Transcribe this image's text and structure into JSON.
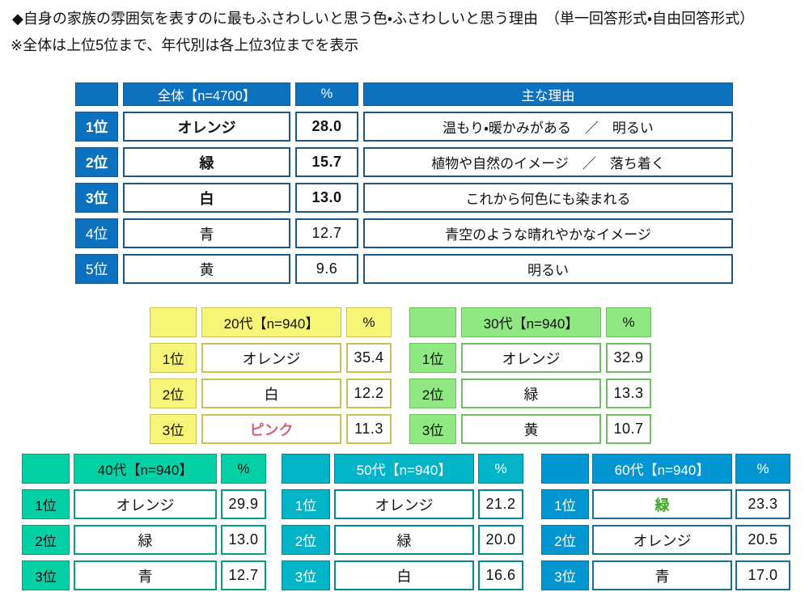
{
  "page": {
    "title": "◆自身の家族の雰囲気を表すのに最もふさわしいと思う色・ふさわしいと思う理由　（単一回答形式・自由回答形式）",
    "subtitle": "※全体は上位5位まで、年代別は各上位3位までを表示",
    "background": "#FFFFFF",
    "text_color": "#111111"
  },
  "chart_data": {
    "type": "table",
    "title": "自身の家族の雰囲気を表すのに最もふさわしいと思う色・ふさわしいと思う理由（単一回答形式・自由回答形式）",
    "note": "全体は上位5位まで、年代別は各上位3位までを表示",
    "tables": [
      {
        "name": "overall",
        "header": "全体【n=4700】",
        "percent_header": "%",
        "reason_header": "主な理由",
        "theme": {
          "fill": "#0C71BE",
          "edge": "#1D5583",
          "header_text": "#FFFFFF"
        },
        "rows": [
          {
            "rank": "1位",
            "color": "オレンジ",
            "value": "28.0",
            "reason": "温もり・暖かみがある　／　明るい",
            "bold": true
          },
          {
            "rank": "2位",
            "color": "緑",
            "value": "15.7",
            "reason": "植物や自然のイメージ　／　落ち着く",
            "bold": true
          },
          {
            "rank": "3位",
            "color": "白",
            "value": "13.0",
            "reason": "これから何色にも染まれる",
            "bold": true
          },
          {
            "rank": "4位",
            "color": "青",
            "value": "12.7",
            "reason": "青空のような晴れやかなイメージ",
            "bold": false
          },
          {
            "rank": "5位",
            "color": "黄",
            "value": "9.6",
            "reason": "明るい",
            "bold": false
          }
        ]
      },
      {
        "name": "20s",
        "header": "20代【n=940】",
        "percent_header": "%",
        "theme": {
          "fill": "#F7F578",
          "edge": "#C9C151",
          "header_text": "#111111"
        },
        "rows": [
          {
            "rank": "1位",
            "color": "オレンジ",
            "value": "35.4"
          },
          {
            "rank": "2位",
            "color": "白",
            "value": "12.2"
          },
          {
            "rank": "3位",
            "color": "ピンク",
            "value": "11.3",
            "color_style": {
              "bold": true,
              "color": "#D06287"
            }
          }
        ]
      },
      {
        "name": "30s",
        "header": "30代【n=940】",
        "percent_header": "%",
        "theme": {
          "fill": "#90E883",
          "edge": "#6FBE60",
          "header_text": "#111111"
        },
        "rows": [
          {
            "rank": "1位",
            "color": "オレンジ",
            "value": "32.9"
          },
          {
            "rank": "2位",
            "color": "緑",
            "value": "13.3"
          },
          {
            "rank": "3位",
            "color": "黄",
            "value": "10.7"
          }
        ]
      },
      {
        "name": "40s",
        "header": "40代【n=940】",
        "percent_header": "%",
        "theme": {
          "fill": "#03D0A5",
          "edge": "#029E7D",
          "header_text": "#111111"
        },
        "rows": [
          {
            "rank": "1位",
            "color": "オレンジ",
            "value": "29.9"
          },
          {
            "rank": "2位",
            "color": "緑",
            "value": "13.0"
          },
          {
            "rank": "3位",
            "color": "青",
            "value": "12.7"
          }
        ]
      },
      {
        "name": "50s",
        "header": "50代【n=940】",
        "percent_header": "%",
        "theme": {
          "fill": "#02B4C8",
          "edge": "#028795",
          "header_text": "#FFFFFF"
        },
        "rows": [
          {
            "rank": "1位",
            "color": "オレンジ",
            "value": "21.2"
          },
          {
            "rank": "2位",
            "color": "緑",
            "value": "20.0"
          },
          {
            "rank": "3位",
            "color": "白",
            "value": "16.6"
          }
        ]
      },
      {
        "name": "60s",
        "header": "60代【n=940】",
        "percent_header": "%",
        "theme": {
          "fill": "#0297D2",
          "edge": "#1C6E96",
          "header_text": "#FFFFFF"
        },
        "rows": [
          {
            "rank": "1位",
            "color": "緑",
            "value": "23.3",
            "color_style": {
              "bold": true,
              "color": "#3FA32B"
            }
          },
          {
            "rank": "2位",
            "color": "オレンジ",
            "value": "20.5"
          },
          {
            "rank": "3位",
            "color": "青",
            "value": "17.0"
          }
        ]
      }
    ]
  }
}
